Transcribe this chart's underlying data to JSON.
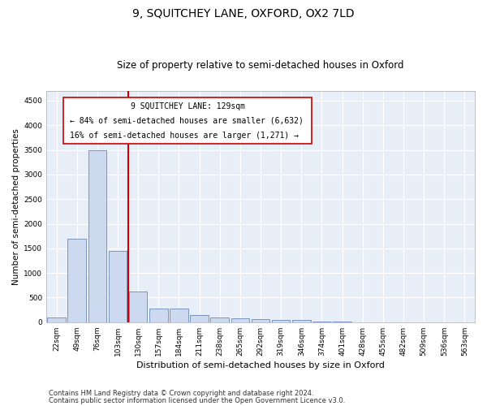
{
  "title": "9, SQUITCHEY LANE, OXFORD, OX2 7LD",
  "subtitle": "Size of property relative to semi-detached houses in Oxford",
  "xlabel": "Distribution of semi-detached houses by size in Oxford",
  "ylabel": "Number of semi-detached properties",
  "categories": [
    "22sqm",
    "49sqm",
    "76sqm",
    "103sqm",
    "130sqm",
    "157sqm",
    "184sqm",
    "211sqm",
    "238sqm",
    "265sqm",
    "292sqm",
    "319sqm",
    "346sqm",
    "374sqm",
    "401sqm",
    "428sqm",
    "455sqm",
    "482sqm",
    "509sqm",
    "536sqm",
    "563sqm"
  ],
  "values": [
    100,
    1700,
    3500,
    1450,
    620,
    270,
    270,
    150,
    100,
    80,
    70,
    50,
    40,
    10,
    10,
    5,
    5,
    3,
    2,
    2,
    2
  ],
  "bar_color": "#cdd9ee",
  "bar_edge_color": "#5577aa",
  "grid_color": "#cccccc",
  "annotation_box_color": "#cc0000",
  "vline_color": "#cc0000",
  "vline_x_index": 4,
  "annotation_title": "9 SQUITCHEY LANE: 129sqm",
  "annotation_line1": "← 84% of semi-detached houses are smaller (6,632)",
  "annotation_line2": "16% of semi-detached houses are larger (1,271) →",
  "ylim": [
    0,
    4700
  ],
  "yticks": [
    0,
    500,
    1000,
    1500,
    2000,
    2500,
    3000,
    3500,
    4000,
    4500
  ],
  "footnote1": "Contains HM Land Registry data © Crown copyright and database right 2024.",
  "footnote2": "Contains public sector information licensed under the Open Government Licence v3.0.",
  "title_fontsize": 10,
  "subtitle_fontsize": 8.5,
  "xlabel_fontsize": 8,
  "ylabel_fontsize": 7.5,
  "tick_fontsize": 6.5,
  "annotation_title_fontsize": 7,
  "annotation_text_fontsize": 7,
  "footnote_fontsize": 6,
  "background_color": "#ffffff",
  "axes_bg_color": "#e8eef8"
}
